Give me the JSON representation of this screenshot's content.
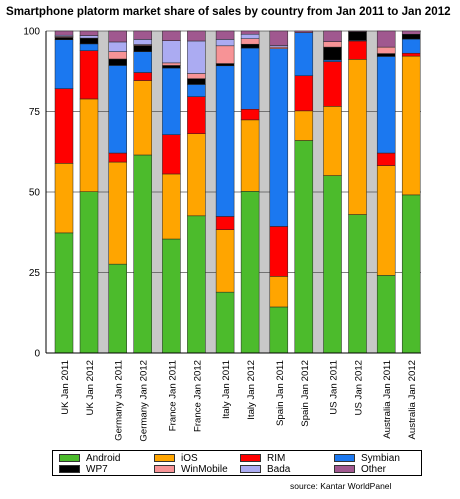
{
  "title": "Smartphone platorm market share of sales by country from Jan 2011 to Jan 2012",
  "source": "source: Kantar WorldPanel",
  "chart_data": {
    "type": "bar",
    "stacked": true,
    "categories": [
      "UK Jan 2011",
      "UK Jan 2012",
      "Germany Jan 2011",
      "Germany Jan 2012",
      "France Jan 2011",
      "France Jan 2012",
      "Italy Jan 2011",
      "Italy Jan 2012",
      "Spain Jan 2011",
      "Spain Jan 2012",
      "US Jan 2011",
      "US Jan 2012",
      "Australia Jan 2011",
      "Australia Jan 2012"
    ],
    "ylim": [
      0,
      100
    ],
    "yticks": [
      "0",
      "25",
      "50",
      "75",
      "100"
    ],
    "grid": true,
    "series": [
      {
        "name": "Android",
        "color": "#4cbb2c",
        "values": [
          37.3,
          50.1,
          27.6,
          61.5,
          35.4,
          42.6,
          18.9,
          50.2,
          14.3,
          66.0,
          55.1,
          43.0,
          24.1,
          49.1
        ]
      },
      {
        "name": "iOS",
        "color": "#ffa500",
        "values": [
          21.6,
          28.8,
          31.7,
          23.1,
          20.2,
          25.5,
          19.4,
          22.2,
          9.5,
          9.2,
          21.5,
          48.2,
          34.1,
          43.1
        ]
      },
      {
        "name": "RIM",
        "color": "#ff0000",
        "values": [
          23.2,
          15.0,
          2.8,
          2.5,
          12.2,
          11.5,
          4.1,
          3.3,
          15.5,
          10.9,
          13.9,
          5.7,
          3.9,
          0.9
        ]
      },
      {
        "name": "Symbian",
        "color": "#1b78f0",
        "values": [
          15.2,
          2.1,
          27.2,
          6.5,
          20.7,
          3.8,
          46.8,
          19.0,
          55.2,
          13.4,
          0.5,
          0.2,
          30.0,
          4.4
        ]
      },
      {
        "name": "WP7",
        "color": "#000000",
        "values": [
          0.7,
          1.8,
          2.0,
          1.9,
          0.8,
          1.8,
          0.7,
          1.2,
          0.0,
          0.0,
          4.0,
          2.7,
          0.9,
          1.5
        ]
      },
      {
        "name": "WinMobile",
        "color": "#f79396",
        "values": [
          0.3,
          0.0,
          2.3,
          0.3,
          0.8,
          1.6,
          5.5,
          1.7,
          0.5,
          0.0,
          1.7,
          0.0,
          2.0,
          0.0
        ]
      },
      {
        "name": "Bada",
        "color": "#ababf2",
        "values": [
          0.4,
          0.8,
          3.0,
          1.6,
          6.9,
          10.1,
          2.0,
          1.4,
          0.5,
          0.0,
          0.0,
          0.0,
          0.0,
          0.0
        ]
      },
      {
        "name": "Other",
        "color": "#a0588f",
        "values": [
          1.3,
          1.4,
          3.4,
          2.6,
          3.0,
          3.1,
          2.6,
          1.0,
          4.5,
          0.5,
          3.3,
          0.2,
          5.0,
          1.0
        ]
      }
    ]
  },
  "legend": {
    "order": [
      "Android",
      "iOS",
      "RIM",
      "Symbian",
      "WP7",
      "WinMobile",
      "Bada",
      "Other"
    ]
  }
}
